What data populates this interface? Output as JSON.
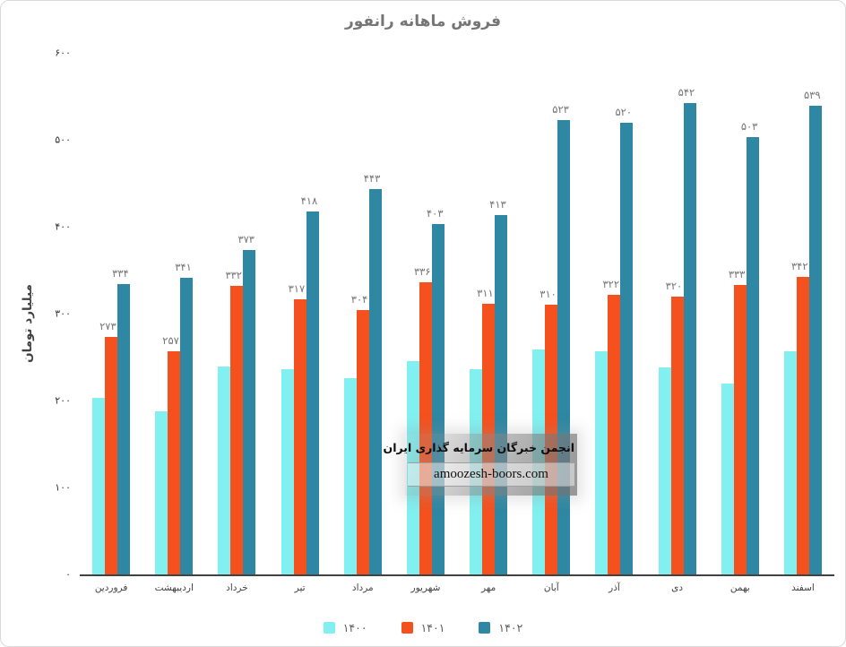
{
  "title": "فروش ماهانه رانفور",
  "chart_data": {
    "type": "bar",
    "title": "فروش ماهانه رانفور",
    "xlabel": "",
    "ylabel": "میلیارد تومان",
    "ylim": [
      0,
      600
    ],
    "grid": false,
    "legend_position": "bottom",
    "categories": [
      "فروردین",
      "اردیبهشت",
      "خرداد",
      "تیر",
      "مرداد",
      "شهریور",
      "مهر",
      "آبان",
      "آذر",
      "دی",
      "بهمن",
      "اسفند"
    ],
    "yticks": [
      {
        "value": 0,
        "label": "۰"
      },
      {
        "value": 100,
        "label": "۱۰۰"
      },
      {
        "value": 200,
        "label": "۲۰۰"
      },
      {
        "value": 300,
        "label": "۳۰۰"
      },
      {
        "value": 400,
        "label": "۴۰۰"
      },
      {
        "value": 500,
        "label": "۵۰۰"
      },
      {
        "value": 600,
        "label": "۶۰۰"
      }
    ],
    "series": [
      {
        "name": "۱۴۰۰",
        "color": "#82F0F0",
        "values": [
          203,
          188,
          239,
          236,
          226,
          245,
          236,
          259,
          257,
          238,
          220,
          257
        ],
        "labels": null
      },
      {
        "name": "۱۴۰۱",
        "color": "#F4511E",
        "values": [
          273,
          257,
          332,
          317,
          304,
          336,
          311,
          310,
          322,
          320,
          333,
          342
        ],
        "labels": [
          "۲۷۳",
          "۲۵۷",
          "۳۳۲",
          "۳۱۷",
          "۳۰۴",
          "۳۳۶",
          "۳۱۱",
          "۳۱۰",
          "۳۲۲",
          "۳۲۰",
          "۳۳۳",
          "۳۴۲"
        ]
      },
      {
        "name": "۱۴۰۲",
        "color": "#2E87A3",
        "values": [
          334,
          341,
          373,
          418,
          443,
          403,
          413,
          523,
          520,
          542,
          503,
          539
        ],
        "labels": [
          "۳۳۴",
          "۳۴۱",
          "۳۷۳",
          "۴۱۸",
          "۴۴۳",
          "۴۰۳",
          "۴۱۳",
          "۵۲۳",
          "۵۲۰",
          "۵۴۲",
          "۵۰۳",
          "۵۳۹"
        ]
      }
    ]
  },
  "watermark": {
    "line1": "انجمن خبرگان سرمایه گذاری ایران",
    "line2": "amoozesh-boors.com"
  },
  "colors": {
    "title_text": "#757575",
    "axis_text": "#424242",
    "bar_label_text": "#757575",
    "series_1400": "#82F0F0",
    "series_1401": "#F4511E",
    "series_1402": "#2E87A3",
    "background": "#ffffff"
  }
}
